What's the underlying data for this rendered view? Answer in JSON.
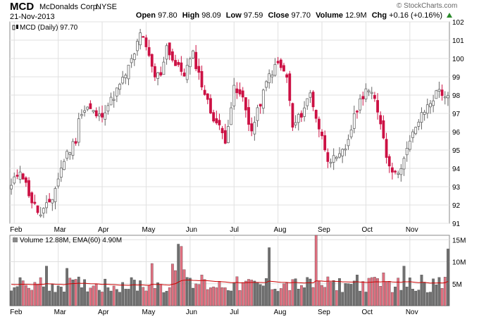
{
  "header": {
    "ticker": "MCD",
    "company": "McDonalds Corp.",
    "exchange": "NYSE",
    "date": "21-Nov-2013",
    "brand": "© StockCharts.com",
    "open_label": "Open",
    "open": "97.80",
    "high_label": "High",
    "high": "98.09",
    "low_label": "Low",
    "low": "97.59",
    "close_label": "Close",
    "close": "97.70",
    "volume_label": "Volume",
    "volume": "12.9M",
    "chg_label": "Chg",
    "chg": "+0.16 (+0.16%)"
  },
  "price_panel": {
    "legend": "MCD (Daily) 97.70"
  },
  "volume_panel": {
    "legend": "Volume 12.88M, EMA(60) 4.90M"
  },
  "colors": {
    "up": "#666666",
    "down": "#cc1144",
    "vol_up": "#707070",
    "vol_down": "#e07080",
    "ema": "#cc0000",
    "grid": "#e0e0e0"
  },
  "chart_data": [
    {
      "type": "candlestick",
      "title": "MCD (Daily) 97.70",
      "x_months": [
        "Feb",
        "Mar",
        "Apr",
        "May",
        "Jun",
        "Jul",
        "Aug",
        "Sep",
        "Oct",
        "Nov"
      ],
      "ylim": [
        91,
        102
      ],
      "yticks": [
        91,
        92,
        93,
        94,
        95,
        96,
        97,
        98,
        99,
        100,
        101,
        102
      ],
      "grid": true,
      "anchors": [
        [
          0,
          93.0
        ],
        [
          3,
          94.0
        ],
        [
          7,
          92.2
        ],
        [
          10,
          91.4
        ],
        [
          14,
          92.4
        ],
        [
          18,
          94.5
        ],
        [
          22,
          95.6
        ],
        [
          23,
          96.8
        ],
        [
          26,
          97.3
        ],
        [
          30,
          96.8
        ],
        [
          34,
          97.7
        ],
        [
          38,
          98.8
        ],
        [
          42,
          100.2
        ],
        [
          44,
          101.5
        ],
        [
          46,
          100.5
        ],
        [
          49,
          99.0
        ],
        [
          51,
          99.2
        ],
        [
          53,
          100.7
        ],
        [
          56,
          99.6
        ],
        [
          59,
          99.2
        ],
        [
          62,
          100.2
        ],
        [
          65,
          98.6
        ],
        [
          68,
          97.1
        ],
        [
          70,
          96.5
        ],
        [
          73,
          95.6
        ],
        [
          76,
          98.3
        ],
        [
          79,
          97.8
        ],
        [
          82,
          96.0
        ],
        [
          85,
          97.6
        ],
        [
          88,
          99.1
        ],
        [
          91,
          99.7
        ],
        [
          94,
          99.0
        ],
        [
          96,
          96.2
        ],
        [
          99,
          97.0
        ],
        [
          102,
          98.1
        ],
        [
          105,
          96.2
        ],
        [
          108,
          94.6
        ],
        [
          111,
          94.4
        ],
        [
          114,
          95.1
        ],
        [
          118,
          97.3
        ],
        [
          121,
          98.4
        ],
        [
          124,
          97.7
        ],
        [
          126,
          96.6
        ],
        [
          128,
          94.7
        ],
        [
          131,
          93.6
        ],
        [
          134,
          94.5
        ],
        [
          138,
          96.3
        ],
        [
          142,
          97.4
        ],
        [
          146,
          98.3
        ],
        [
          149,
          97.8
        ]
      ]
    },
    {
      "type": "bar",
      "title": "Volume 12.88M, EMA(60) 4.90M",
      "ylim": [
        0,
        16
      ],
      "yticks_labels": [
        "5M",
        "10M",
        "15M"
      ],
      "ema60": 4.9,
      "spikes": [
        [
          12,
          9.0
        ],
        [
          19,
          8.5
        ],
        [
          48,
          9.6
        ],
        [
          55,
          9.5
        ],
        [
          56,
          8.0
        ],
        [
          57,
          14.0
        ],
        [
          58,
          13.5
        ],
        [
          59,
          8.2
        ],
        [
          65,
          7.0
        ],
        [
          88,
          13.2
        ],
        [
          104,
          16.0
        ],
        [
          118,
          7.0
        ],
        [
          124,
          6.5
        ],
        [
          127,
          7.5
        ],
        [
          134,
          9.0
        ],
        [
          140,
          7.0
        ],
        [
          149,
          12.9
        ]
      ]
    }
  ]
}
